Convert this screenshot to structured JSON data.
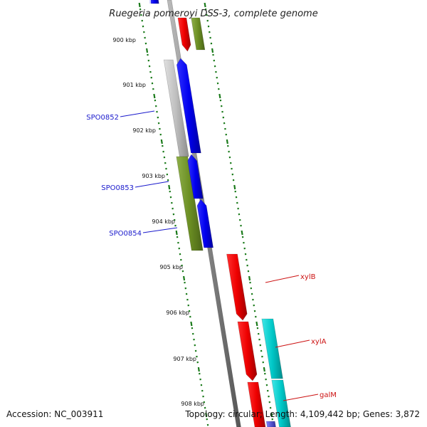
{
  "title": "Ruegeria pomeroyi DSS-3, complete genome",
  "ticks": [
    "900 kbp",
    "901 kbp",
    "902 kbp",
    "903 kbp",
    "904 kbp",
    "905 kbp",
    "906 kbp",
    "907 kbp",
    "908 kbp"
  ],
  "labels": {
    "SPO0852": "SPO0852",
    "SPO0853": "SPO0853",
    "SPO0854": "SPO0854",
    "xylB": "xylB",
    "xylA": "xylA",
    "galM": "galM"
  },
  "colors": {
    "blue": "#0000ee",
    "red": "#ee0000",
    "olive": "#6b8e23",
    "cyan": "#00c8c8",
    "grey": "#b8b8b8",
    "backbone": "#8a8a8a",
    "tick": "#1a7a1a"
  },
  "footer": {
    "accession": "Accession: NC_003911",
    "summary": "Topology: circular; Length: 4,109,442 bp; Genes: 3,872"
  }
}
